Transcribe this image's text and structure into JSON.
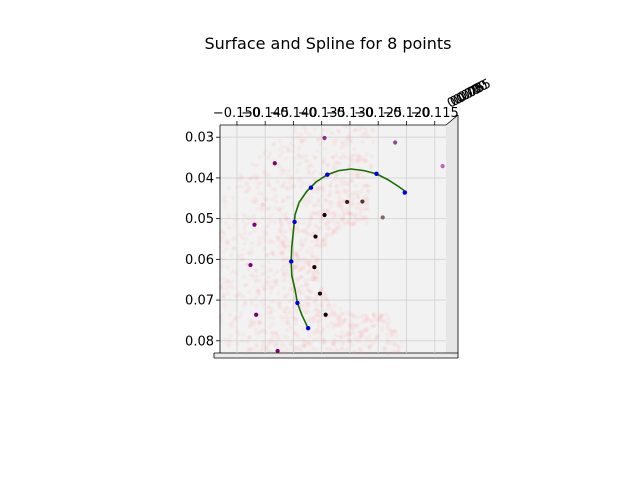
{
  "chart_data": {
    "type": "scatter",
    "title": "Surface and Spline for 8 points",
    "xlabel": "",
    "ylabel": "",
    "x_ticks": [
      "−0.150",
      "−0.145",
      "−0.140",
      "−0.135",
      "−0.130",
      "−0.125",
      "−0.120",
      "−0.115"
    ],
    "y_ticks": [
      "0.03",
      "0.04",
      "0.05",
      "0.06",
      "0.07",
      "0.08"
    ],
    "z_ticks": [
      "0.070",
      "0.075",
      "0.080",
      "0.085"
    ],
    "xlim": [
      -0.153,
      -0.113
    ],
    "ylim": [
      0.027,
      0.083
    ],
    "grid": true,
    "colors": {
      "surface": "#ff9a9a",
      "spline": "#1a6e00",
      "spline_points": "#0000dd",
      "pane": "#f2f2f2",
      "grid": "#d2d2d2"
    },
    "spline": [
      {
        "x": -0.1374,
        "y": 0.0769
      },
      {
        "x": -0.1385,
        "y": 0.0737
      },
      {
        "x": -0.1393,
        "y": 0.0707
      },
      {
        "x": -0.1397,
        "y": 0.0675
      },
      {
        "x": -0.1403,
        "y": 0.064
      },
      {
        "x": -0.1404,
        "y": 0.0605
      },
      {
        "x": -0.1403,
        "y": 0.057
      },
      {
        "x": -0.14,
        "y": 0.053
      },
      {
        "x": -0.1397,
        "y": 0.049
      },
      {
        "x": -0.139,
        "y": 0.046
      },
      {
        "x": -0.1376,
        "y": 0.0432
      },
      {
        "x": -0.136,
        "y": 0.041
      },
      {
        "x": -0.134,
        "y": 0.0392
      },
      {
        "x": -0.132,
        "y": 0.0382
      },
      {
        "x": -0.1298,
        "y": 0.0378
      },
      {
        "x": -0.1275,
        "y": 0.0382
      },
      {
        "x": -0.1253,
        "y": 0.039
      },
      {
        "x": -0.1233,
        "y": 0.0404
      },
      {
        "x": -0.1215,
        "y": 0.042
      },
      {
        "x": -0.1199,
        "y": 0.0436
      }
    ],
    "spline_points": [
      {
        "x": -0.1374,
        "y": 0.0769
      },
      {
        "x": -0.1393,
        "y": 0.0707
      },
      {
        "x": -0.1404,
        "y": 0.0605
      },
      {
        "x": -0.1398,
        "y": 0.0508
      },
      {
        "x": -0.1369,
        "y": 0.0424
      },
      {
        "x": -0.134,
        "y": 0.0392
      },
      {
        "x": -0.1253,
        "y": 0.039
      },
      {
        "x": -0.1203,
        "y": 0.0436
      }
    ],
    "control_points": [
      {
        "x": -0.1428,
        "y": 0.0825,
        "color": "#7a006a"
      },
      {
        "x": -0.1466,
        "y": 0.0736,
        "color": "#6e0070"
      },
      {
        "x": -0.1476,
        "y": 0.0614,
        "color": "#800080"
      },
      {
        "x": -0.1469,
        "y": 0.0515,
        "color": "#800080"
      },
      {
        "x": -0.1433,
        "y": 0.0364,
        "color": "#7a007a"
      },
      {
        "x": -0.1345,
        "y": 0.0302,
        "color": "#8a2a8a"
      },
      {
        "x": -0.122,
        "y": 0.0313,
        "color": "#8e4a8e"
      },
      {
        "x": -0.1136,
        "y": 0.0371,
        "color": "#c060c0"
      },
      {
        "x": -0.1343,
        "y": 0.0736,
        "color": "#110000"
      },
      {
        "x": -0.1353,
        "y": 0.0684,
        "color": "#110000"
      },
      {
        "x": -0.1363,
        "y": 0.0619,
        "color": "#220000"
      },
      {
        "x": -0.1361,
        "y": 0.0544,
        "color": "#220000"
      },
      {
        "x": -0.1345,
        "y": 0.0491,
        "color": "#110000"
      },
      {
        "x": -0.1305,
        "y": 0.0459,
        "color": "#3a1818"
      },
      {
        "x": -0.1278,
        "y": 0.0458,
        "color": "#5a3030"
      },
      {
        "x": -0.1242,
        "y": 0.0497,
        "color": "#8a6060"
      }
    ]
  }
}
